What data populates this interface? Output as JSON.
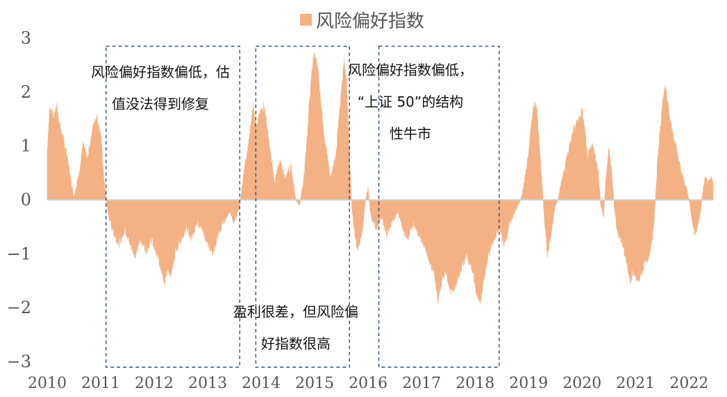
{
  "chart_data": {
    "type": "area",
    "legend": {
      "label": "风险偏好指数",
      "position": "top-center",
      "color": "#F4B183"
    },
    "series": [
      {
        "name": "风险偏好指数",
        "color": "#F4B183",
        "points": [
          [
            2010.0,
            0.9
          ],
          [
            2010.05,
            1.7
          ],
          [
            2010.12,
            1.5
          ],
          [
            2010.17,
            1.72
          ],
          [
            2010.25,
            1.3
          ],
          [
            2010.35,
            0.9
          ],
          [
            2010.45,
            0.3
          ],
          [
            2010.5,
            0.05
          ],
          [
            2010.6,
            0.5
          ],
          [
            2010.67,
            1.0
          ],
          [
            2010.75,
            0.7
          ],
          [
            2010.85,
            1.3
          ],
          [
            2010.92,
            1.55
          ],
          [
            2011.0,
            1.2
          ],
          [
            2011.05,
            0.5
          ],
          [
            2011.1,
            0.0
          ],
          [
            2011.15,
            -0.3
          ],
          [
            2011.25,
            -0.6
          ],
          [
            2011.35,
            -0.8
          ],
          [
            2011.45,
            -0.5
          ],
          [
            2011.55,
            -0.8
          ],
          [
            2011.65,
            -1.0
          ],
          [
            2011.75,
            -0.7
          ],
          [
            2011.85,
            -0.9
          ],
          [
            2011.95,
            -0.7
          ],
          [
            2012.05,
            -1.0
          ],
          [
            2012.15,
            -1.3
          ],
          [
            2012.2,
            -1.52
          ],
          [
            2012.25,
            -1.2
          ],
          [
            2012.3,
            -1.45
          ],
          [
            2012.4,
            -0.9
          ],
          [
            2012.5,
            -0.7
          ],
          [
            2012.6,
            -0.5
          ],
          [
            2012.7,
            -0.7
          ],
          [
            2012.8,
            -0.4
          ],
          [
            2012.9,
            -0.5
          ],
          [
            2013.0,
            -0.8
          ],
          [
            2013.1,
            -0.95
          ],
          [
            2013.2,
            -0.6
          ],
          [
            2013.3,
            -0.4
          ],
          [
            2013.4,
            -0.2
          ],
          [
            2013.5,
            -0.4
          ],
          [
            2013.6,
            -0.1
          ],
          [
            2013.65,
            0.3
          ],
          [
            2013.75,
            0.9
          ],
          [
            2013.8,
            1.3
          ],
          [
            2013.85,
            1.75
          ],
          [
            2013.9,
            1.4
          ],
          [
            2014.0,
            1.6
          ],
          [
            2014.05,
            1.75
          ],
          [
            2014.1,
            1.4
          ],
          [
            2014.15,
            1.0
          ],
          [
            2014.25,
            0.3
          ],
          [
            2014.35,
            0.7
          ],
          [
            2014.45,
            0.4
          ],
          [
            2014.55,
            0.6
          ],
          [
            2014.65,
            0.0
          ],
          [
            2014.72,
            -0.1
          ],
          [
            2014.8,
            0.4
          ],
          [
            2014.85,
            1.0
          ],
          [
            2014.9,
            1.8
          ],
          [
            2014.95,
            2.4
          ],
          [
            2015.0,
            2.7
          ],
          [
            2015.05,
            2.5
          ],
          [
            2015.1,
            2.0
          ],
          [
            2015.15,
            1.4
          ],
          [
            2015.2,
            1.0
          ],
          [
            2015.3,
            0.4
          ],
          [
            2015.4,
            0.8
          ],
          [
            2015.45,
            1.5
          ],
          [
            2015.5,
            2.0
          ],
          [
            2015.55,
            2.55
          ],
          [
            2015.6,
            2.1
          ],
          [
            2015.65,
            0.8
          ],
          [
            2015.7,
            -0.2
          ],
          [
            2015.75,
            -0.6
          ],
          [
            2015.8,
            -0.9
          ],
          [
            2015.85,
            -0.7
          ],
          [
            2015.9,
            -0.5
          ],
          [
            2015.95,
            0.0
          ],
          [
            2016.0,
            0.2
          ],
          [
            2016.05,
            -0.3
          ],
          [
            2016.15,
            -0.5
          ],
          [
            2016.25,
            -0.3
          ],
          [
            2016.35,
            -0.6
          ],
          [
            2016.45,
            -0.4
          ],
          [
            2016.55,
            -0.2
          ],
          [
            2016.65,
            -0.5
          ],
          [
            2016.75,
            -0.7
          ],
          [
            2016.85,
            -0.4
          ],
          [
            2016.95,
            -0.6
          ],
          [
            2017.05,
            -0.8
          ],
          [
            2017.15,
            -1.1
          ],
          [
            2017.25,
            -1.4
          ],
          [
            2017.3,
            -1.85
          ],
          [
            2017.35,
            -1.6
          ],
          [
            2017.45,
            -1.3
          ],
          [
            2017.55,
            -1.7
          ],
          [
            2017.65,
            -1.5
          ],
          [
            2017.75,
            -1.2
          ],
          [
            2017.85,
            -1.0
          ],
          [
            2017.95,
            -1.3
          ],
          [
            2018.05,
            -1.8
          ],
          [
            2018.1,
            -1.9
          ],
          [
            2018.15,
            -1.5
          ],
          [
            2018.25,
            -1.0
          ],
          [
            2018.35,
            -0.7
          ],
          [
            2018.45,
            -0.5
          ],
          [
            2018.55,
            -0.8
          ],
          [
            2018.65,
            -0.4
          ],
          [
            2018.75,
            -0.2
          ],
          [
            2018.85,
            0.0
          ],
          [
            2018.9,
            0.2
          ],
          [
            2019.0,
            0.8
          ],
          [
            2019.05,
            1.4
          ],
          [
            2019.1,
            1.75
          ],
          [
            2019.15,
            1.7
          ],
          [
            2019.2,
            1.0
          ],
          [
            2019.25,
            0.3
          ],
          [
            2019.3,
            -0.4
          ],
          [
            2019.35,
            -1.0
          ],
          [
            2019.4,
            -0.7
          ],
          [
            2019.45,
            -0.4
          ],
          [
            2019.5,
            -0.1
          ],
          [
            2019.55,
            0.0
          ],
          [
            2019.65,
            0.5
          ],
          [
            2019.75,
            0.9
          ],
          [
            2019.85,
            1.3
          ],
          [
            2019.95,
            1.5
          ],
          [
            2020.0,
            1.65
          ],
          [
            2020.05,
            1.3
          ],
          [
            2020.1,
            0.8
          ],
          [
            2020.2,
            1.0
          ],
          [
            2020.3,
            0.5
          ],
          [
            2020.35,
            -0.1
          ],
          [
            2020.4,
            -0.3
          ],
          [
            2020.45,
            0.4
          ],
          [
            2020.5,
            0.9
          ],
          [
            2020.55,
            0.5
          ],
          [
            2020.6,
            -0.1
          ],
          [
            2020.65,
            -0.5
          ],
          [
            2020.75,
            -0.8
          ],
          [
            2020.85,
            -1.2
          ],
          [
            2020.9,
            -1.5
          ],
          [
            2020.95,
            -1.3
          ],
          [
            2021.05,
            -1.5
          ],
          [
            2021.15,
            -1.2
          ],
          [
            2021.25,
            -1.0
          ],
          [
            2021.3,
            -0.8
          ],
          [
            2021.35,
            -0.3
          ],
          [
            2021.4,
            0.5
          ],
          [
            2021.45,
            1.2
          ],
          [
            2021.5,
            1.7
          ],
          [
            2021.55,
            2.05
          ],
          [
            2021.6,
            1.8
          ],
          [
            2021.65,
            1.4
          ],
          [
            2021.75,
            1.0
          ],
          [
            2021.85,
            0.5
          ],
          [
            2021.95,
            0.2
          ],
          [
            2022.0,
            0.0
          ],
          [
            2022.05,
            -0.3
          ],
          [
            2022.1,
            -0.6
          ],
          [
            2022.15,
            -0.5
          ],
          [
            2022.2,
            -0.3
          ],
          [
            2022.25,
            0.1
          ],
          [
            2022.3,
            0.4
          ],
          [
            2022.35,
            0.3
          ],
          [
            2022.4,
            0.4
          ],
          [
            2022.45,
            0.3
          ]
        ]
      }
    ],
    "xticks": [
      "2010",
      "2011",
      "2012",
      "2013",
      "2014",
      "2015",
      "2016",
      "2017",
      "2018",
      "2019",
      "2020",
      "2021",
      "2022"
    ],
    "xlim": [
      2010.0,
      2022.45
    ],
    "yticks": [
      "3",
      "2",
      "1",
      "0",
      "−1",
      "−2",
      "−3"
    ],
    "ylim": [
      -3,
      3
    ],
    "grid": false,
    "annotations": [
      {
        "id": "period-1",
        "x_range": [
          2011.1,
          2013.6
        ],
        "y_range": [
          -3.0,
          2.85
        ],
        "lines": [
          "风险偏好指数偏低，估",
          "值没法得到修复"
        ]
      },
      {
        "id": "period-2",
        "x_range": [
          2013.9,
          2015.65
        ],
        "y_range": [
          -3.0,
          2.85
        ],
        "lines": [
          "盈利很差，但风险偏",
          "好指数很高"
        ]
      },
      {
        "id": "period-3",
        "x_range": [
          2016.2,
          2018.45
        ],
        "y_range": [
          -3.0,
          2.85
        ],
        "lines": [
          "风险偏好指数偏低，",
          "“上证 50”的结构",
          "性牛市"
        ]
      }
    ]
  }
}
